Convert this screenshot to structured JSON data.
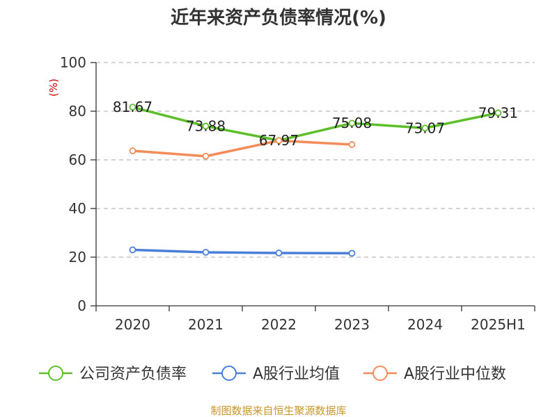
{
  "chart_data": {
    "type": "line",
    "title": "近年来资产负债率情况(%)",
    "ylabel": "(%)",
    "xlabel": "",
    "ylim": [
      0,
      100
    ],
    "yticks": [
      0,
      20,
      40,
      60,
      80,
      100
    ],
    "grid": true,
    "legend": "bottom",
    "categories": [
      "2020",
      "2021",
      "2022",
      "2023",
      "2024",
      "2025H1"
    ],
    "series": [
      {
        "name": "公司资产负债率",
        "color": "#5cbf2a",
        "values": [
          81.67,
          73.88,
          67.97,
          75.08,
          73.07,
          79.31
        ],
        "labels": [
          "81.67",
          "73.88",
          "67.97",
          "75.08",
          "73.07",
          "79.31"
        ]
      },
      {
        "name": "A股行业均值",
        "color": "#4a7fd9",
        "values": [
          23.0,
          22.0,
          21.7,
          21.6,
          null,
          null
        ],
        "labels": []
      },
      {
        "name": "A股行业中位数",
        "color": "#f48c5a",
        "values": [
          63.7,
          61.5,
          67.9,
          66.3,
          null,
          null
        ],
        "labels": []
      }
    ]
  },
  "footer": {
    "source": "制图数据来自恒生聚源数据库"
  }
}
